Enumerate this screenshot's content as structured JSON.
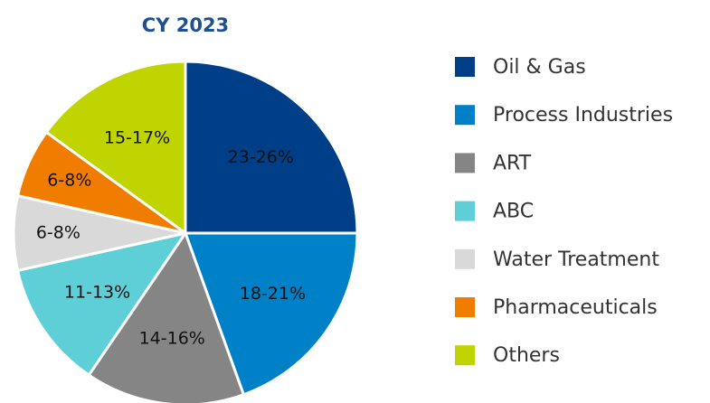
{
  "chart_data": {
    "type": "pie",
    "title": "CY 2023",
    "categories": [
      "Oil & Gas",
      "Process Industries",
      "ART",
      "ABC",
      "Water Treatment",
      "Pharmaceuticals",
      "Others"
    ],
    "values": [
      25,
      19.5,
      15,
      12,
      7,
      6.5,
      15
    ],
    "value_labels": [
      "23-26%",
      "18-21%",
      "14-16%",
      "11-13%",
      "6-8%",
      "6-8%",
      "15-17%"
    ],
    "colors": [
      "#003f87",
      "#0080c6",
      "#858585",
      "#5ecfd6",
      "#d9d9d9",
      "#f07d00",
      "#bfd400"
    ],
    "legend": "right"
  }
}
